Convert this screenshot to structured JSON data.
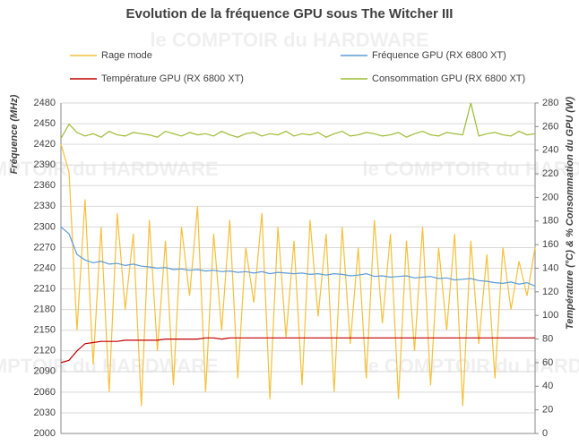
{
  "chart_data": {
    "type": "line",
    "title": "Evolution de la fréquence GPU sous The Witcher III",
    "watermark": "le COMPTOIR du HARDWARE",
    "y_label": "Fréquence (MHz)",
    "y2_label": "Température (°C) & % Consommation du GPU (W)",
    "categories": [
      null,
      null,
      null,
      null,
      null,
      null,
      null,
      null,
      null,
      null,
      null,
      null,
      null,
      null,
      null,
      null,
      null,
      null,
      null,
      null,
      null,
      null,
      null,
      null,
      null,
      null,
      null,
      null,
      null,
      null,
      null,
      null,
      null,
      null,
      null,
      null,
      null,
      null,
      null,
      null,
      null,
      null,
      null,
      null,
      null,
      null,
      null,
      null,
      null,
      null,
      null,
      null,
      null,
      null,
      null,
      null,
      null,
      null,
      null,
      null
    ],
    "ylim": [
      2000,
      2480
    ],
    "yticks": [
      2000,
      2030,
      2060,
      2090,
      2120,
      2150,
      2180,
      2210,
      2240,
      2270,
      2300,
      2330,
      2360,
      2390,
      2420,
      2450,
      2480
    ],
    "y2lim": [
      0,
      280
    ],
    "y2ticks": [
      0,
      20,
      40,
      60,
      80,
      100,
      120,
      140,
      160,
      180,
      200,
      220,
      240,
      260,
      280
    ],
    "grid": true,
    "series": [
      {
        "name": "Rage mode",
        "color": "#f5c03a",
        "values": [
          2420,
          2380,
          2150,
          2340,
          2100,
          2300,
          2060,
          2320,
          2180,
          2290,
          2040,
          2310,
          2120,
          2280,
          2070,
          2300,
          2200,
          2330,
          2060,
          2290,
          2150,
          2310,
          2080,
          2270,
          2190,
          2320,
          2050,
          2300,
          2140,
          2280,
          2070,
          2310,
          2170,
          2290,
          2060,
          2300,
          2130,
          2270,
          2080,
          2310,
          2160,
          2290,
          2050,
          2280,
          2120,
          2300,
          2070,
          2270,
          2150,
          2290,
          2040,
          2280,
          2130,
          2260,
          2080,
          2270,
          2180,
          2250,
          2200,
          2270
        ]
      },
      {
        "name": "Fréquence GPU (RX 6800 XT)",
        "color": "#5b9bd5",
        "values": [
          2300,
          2290,
          2260,
          2252,
          2248,
          2250,
          2246,
          2247,
          2244,
          2246,
          2243,
          2242,
          2240,
          2241,
          2238,
          2239,
          2237,
          2238,
          2236,
          2237,
          2235,
          2236,
          2234,
          2235,
          2233,
          2235,
          2232,
          2234,
          2233,
          2232,
          2233,
          2231,
          2232,
          2230,
          2232,
          2231,
          2229,
          2230,
          2232,
          2228,
          2229,
          2227,
          2228,
          2229,
          2226,
          2227,
          2228,
          2225,
          2226,
          2223,
          2224,
          2225,
          2222,
          2221,
          2219,
          2218,
          2220,
          2217,
          2219,
          2214
        ]
      },
      {
        "name": "Température GPU (RX 6800 XT)",
        "color": "#c00000",
        "axis": "y2",
        "values": [
          60,
          62,
          70,
          76,
          77,
          78,
          78,
          78,
          79,
          79,
          79,
          79,
          79,
          80,
          80,
          80,
          80,
          80,
          81,
          81,
          80,
          81,
          81,
          81,
          81,
          81,
          81,
          81,
          81,
          81,
          81,
          81,
          81,
          81,
          81,
          81,
          81,
          81,
          81,
          81,
          81,
          81,
          81,
          81,
          81,
          81,
          81,
          81,
          81,
          81,
          81,
          81,
          81,
          81,
          81,
          81,
          81,
          81,
          81,
          81
        ]
      },
      {
        "name": "Consommation GPU (RX 6800 XT)",
        "color": "#9bbb30",
        "axis": "y2",
        "values": [
          250,
          262,
          255,
          252,
          254,
          251,
          256,
          253,
          252,
          255,
          254,
          253,
          251,
          256,
          254,
          252,
          255,
          253,
          254,
          252,
          256,
          253,
          251,
          254,
          255,
          252,
          254,
          253,
          256,
          252,
          254,
          253,
          255,
          251,
          254,
          256,
          252,
          253,
          255,
          254,
          252,
          253,
          255,
          251,
          254,
          256,
          253,
          252,
          255,
          254,
          253,
          280,
          252,
          254,
          255,
          253,
          252,
          256,
          253,
          254
        ]
      }
    ]
  }
}
